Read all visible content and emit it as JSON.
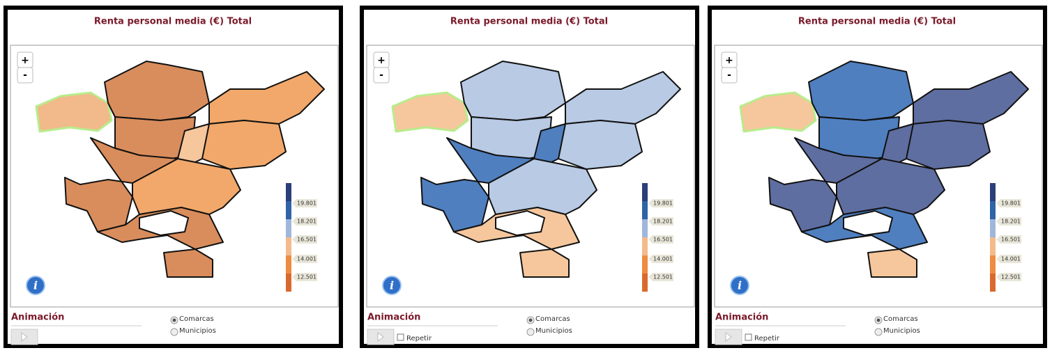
{
  "panels": [
    {
      "title": "Renta personal media (€) Total",
      "zoom_in": "+",
      "zoom_out": "-",
      "legend_labels": [
        "19.801",
        "18.201",
        "16.501",
        "14.001",
        "12.501"
      ],
      "legend_colors": [
        "#2b3f7a",
        "#2f64a6",
        "#9fb7da",
        "#f3bb8c",
        "#ee8c42",
        "#d96a2e"
      ],
      "region_colors": [
        "#f2b98a",
        "#d98d5c",
        "#d98d5c",
        "#f2a86a",
        "#f2a86a",
        "#f6c79c",
        "#d98d5c",
        "#f2a86a",
        "#d98d5c",
        "#d98d5c"
      ],
      "animation": "Animación",
      "options": [
        "Comarcas",
        "Municipios"
      ]
    },
    {
      "title": "Renta personal media (€) Total",
      "zoom_in": "+",
      "zoom_out": "-",
      "legend_labels": [
        "19.801",
        "18.201",
        "16.501",
        "14.001",
        "12.501"
      ],
      "legend_colors": [
        "#2b3f7a",
        "#2f64a6",
        "#9fb7da",
        "#f3bb8c",
        "#ee8c42",
        "#d96a2e"
      ],
      "region_colors": [
        "#f6c79c",
        "#b8cae4",
        "#b8cae4",
        "#b8cae4",
        "#b8cae4",
        "#4f7fbf",
        "#4f7fbf",
        "#b8cae4",
        "#f6c79c",
        "#f6c79c"
      ],
      "animation": "Animación",
      "options": [
        "Comarcas",
        "Municipios"
      ],
      "repeat": "Repetir"
    },
    {
      "title": "Renta personal media (€) Total",
      "zoom_in": "+",
      "zoom_out": "-",
      "legend_labels": [
        "19.801",
        "18.201",
        "16.501",
        "14.001",
        "12.501"
      ],
      "legend_colors": [
        "#2b3f7a",
        "#2f64a6",
        "#9fb7da",
        "#f3bb8c",
        "#ee8c42",
        "#d96a2e"
      ],
      "region_colors": [
        "#f6c79c",
        "#4f7fbf",
        "#4f7fbf",
        "#5f6ea0",
        "#5f6ea0",
        "#5f6ea0",
        "#5f6ea0",
        "#5f6ea0",
        "#4f7fbf",
        "#f6c79c"
      ],
      "animation": "Animación",
      "options": [
        "Comarcas",
        "Municipios"
      ],
      "repeat": "Repetir"
    }
  ]
}
